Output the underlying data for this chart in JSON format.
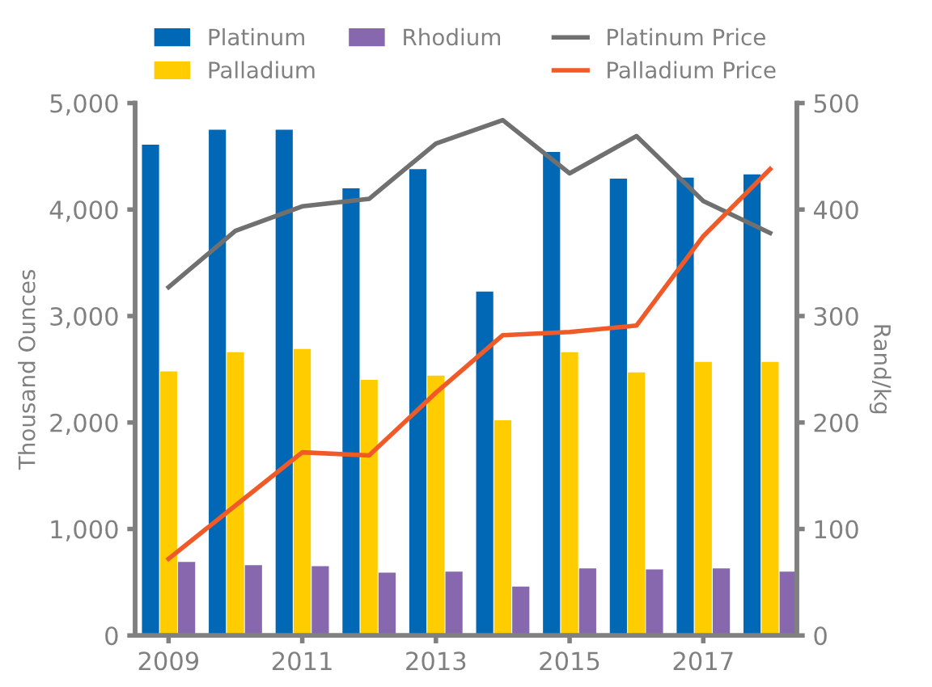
{
  "chart_data": {
    "type": "bar",
    "ylabel": "Thousand Ounces",
    "y2label": "Rand/kg",
    "x": [
      2009,
      2010,
      2011,
      2012,
      2013,
      2014,
      2015,
      2016,
      2017,
      2018
    ],
    "xlim": [
      2008.5,
      2018.4
    ],
    "xticks": [
      2009,
      2011,
      2013,
      2015,
      2017
    ],
    "ylim": [
      0,
      5000
    ],
    "yticks": [
      {
        "value": 0,
        "label": "0"
      },
      {
        "value": 1000,
        "label": "1,000"
      },
      {
        "value": 2000,
        "label": "2,000"
      },
      {
        "value": 3000,
        "label": "3,000"
      },
      {
        "value": 4000,
        "label": "4,000"
      },
      {
        "value": 5000,
        "label": "5,000"
      }
    ],
    "y2lim": [
      0,
      500
    ],
    "y2ticks": [
      0,
      100,
      200,
      300,
      400,
      500
    ],
    "grid": false,
    "legend": "top",
    "series": [
      {
        "name": "Platinum",
        "color": "#0068b5",
        "values": [
          4610,
          4750,
          4750,
          4200,
          4380,
          3230,
          4540,
          4290,
          4300,
          4330
        ]
      },
      {
        "name": "Palladium",
        "color": "#ffcc00",
        "values": [
          2480,
          2660,
          2690,
          2400,
          2440,
          2020,
          2660,
          2470,
          2570,
          2570
        ]
      },
      {
        "name": "Rhodium",
        "color": "#8768ae",
        "values": [
          690,
          660,
          650,
          590,
          600,
          460,
          630,
          620,
          630,
          600
        ]
      },
      {
        "name": "Platinum Price",
        "type": "line",
        "axis": "y2",
        "color": "#707070",
        "values": [
          327,
          380,
          403,
          410,
          462,
          484,
          434,
          469,
          408,
          378
        ]
      },
      {
        "name": "Palladium Price",
        "type": "line",
        "axis": "y2",
        "color": "#f05a28",
        "values": [
          72,
          122,
          172,
          169,
          228,
          282,
          285,
          291,
          375,
          438
        ]
      }
    ]
  }
}
